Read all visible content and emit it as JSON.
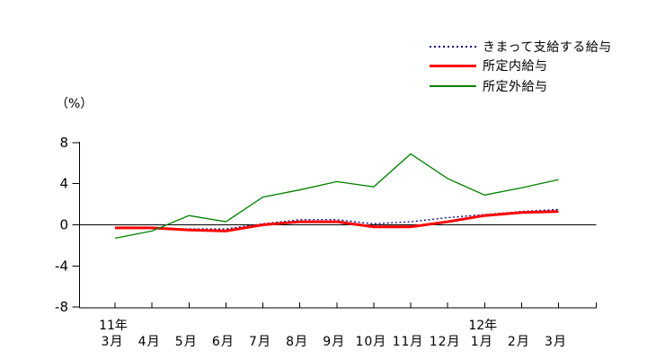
{
  "chart_data": {
    "type": "line",
    "title": "",
    "unit_label": "（%）",
    "categories": [
      "3月",
      "4月",
      "5月",
      "6月",
      "7月",
      "8月",
      "9月",
      "10月",
      "11月",
      "12月",
      "1月",
      "2月",
      "3月"
    ],
    "year_labels": [
      {
        "text": "11年",
        "index": 0
      },
      {
        "text": "12年",
        "index": 10
      }
    ],
    "y_ticks": [
      {
        "label": "8",
        "value": 8
      },
      {
        "label": "4",
        "value": 4
      },
      {
        "label": "0",
        "value": 0
      },
      {
        "label": "-4",
        "value": -4
      },
      {
        "label": "-8",
        "value": -8
      }
    ],
    "ylim": [
      -8,
      8
    ],
    "grid": false,
    "zero_line": true,
    "legend_position": "top-right",
    "series": [
      {
        "name": "きまって支給する給与",
        "color": "#000080",
        "style": "dotted",
        "width": 1.3,
        "values": [
          -0.3,
          -0.3,
          -0.4,
          -0.4,
          0.1,
          0.5,
          0.5,
          0.1,
          0.3,
          0.7,
          1.0,
          1.3,
          1.5
        ]
      },
      {
        "name": "所定内給与",
        "color": "#ff0000",
        "style": "solid",
        "width": 3,
        "values": [
          -0.3,
          -0.3,
          -0.5,
          -0.6,
          0.0,
          0.3,
          0.3,
          -0.2,
          -0.2,
          0.3,
          0.9,
          1.2,
          1.3
        ]
      },
      {
        "name": "所定外給与",
        "color": "#008000",
        "style": "solid",
        "width": 1.3,
        "values": [
          -1.3,
          -0.6,
          0.9,
          0.3,
          2.7,
          3.4,
          4.2,
          3.7,
          6.9,
          4.5,
          2.9,
          3.6,
          4.4
        ]
      }
    ]
  }
}
